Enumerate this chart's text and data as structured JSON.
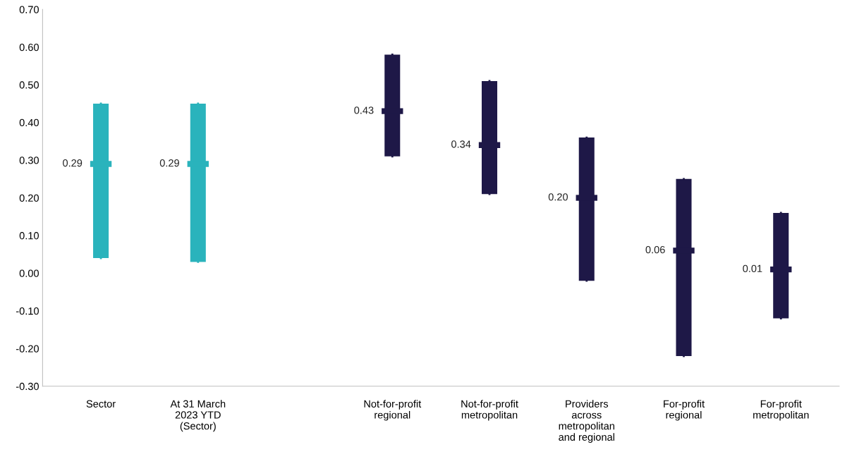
{
  "chart_data": {
    "type": "box",
    "categories": [
      "Sector",
      "At 31 March\n2023 YTD\n(Sector)",
      null,
      "Not-for-profit\nregional",
      "Not-for-profit\nmetropolitan",
      "Providers\nacross\nmetropolitan\nand regional",
      "For-profit\nregional",
      "For-profit\nmetropolitan"
    ],
    "boxes": [
      {
        "low": 0.04,
        "q1": 0.04,
        "median": 0.29,
        "q3": 0.45,
        "high": 0.45
      },
      {
        "low": 0.03,
        "q1": 0.03,
        "median": 0.29,
        "q3": 0.45,
        "high": 0.45
      },
      null,
      {
        "low": 0.31,
        "q1": 0.31,
        "median": 0.43,
        "q3": 0.58,
        "high": 0.58
      },
      {
        "low": 0.21,
        "q1": 0.21,
        "median": 0.34,
        "q3": 0.51,
        "high": 0.51
      },
      {
        "low": -0.02,
        "q1": -0.02,
        "median": 0.2,
        "q3": 0.36,
        "high": 0.36
      },
      {
        "low": -0.22,
        "q1": -0.22,
        "median": 0.06,
        "q3": 0.25,
        "high": 0.25
      },
      {
        "low": -0.12,
        "q1": -0.12,
        "median": 0.01,
        "q3": 0.16,
        "high": 0.16
      }
    ],
    "colors": [
      "#2ab3bc",
      "#2ab3bc",
      null,
      "#1e1847",
      "#1e1847",
      "#1e1847",
      "#1e1847",
      "#1e1847"
    ],
    "annotations": [
      {
        "text": "0.29",
        "x": "Sector",
        "y": 0.29
      },
      {
        "text": "0.29",
        "x": "At 31 March\n2023 YTD\n(Sector)",
        "y": 0.29
      },
      {
        "text": "0.43",
        "x": "Not-for-profit\nregional",
        "y": 0.43
      },
      {
        "text": "0.34",
        "x": "Not-for-profit\nmetropolitan",
        "y": 0.34
      },
      {
        "text": "0.20",
        "x": "Providers\nacross\nmetropolitan\nand regional",
        "y": 0.2
      },
      {
        "text": "0.06",
        "x": "For-profit\nregional",
        "y": 0.06
      },
      {
        "text": "0.01",
        "x": "For-profit\nmetropolitan",
        "y": 0.01
      }
    ],
    "ylim": [
      -0.3,
      0.7
    ],
    "yticks": [
      {
        "value": -0.3,
        "label": "-0.30"
      },
      {
        "value": -0.2,
        "label": "-0.20"
      },
      {
        "value": -0.1,
        "label": "-0.10"
      },
      {
        "value": 0,
        "label": "0.00"
      },
      {
        "value": 0.1,
        "label": "0.10"
      },
      {
        "value": 0.2,
        "label": "0.20"
      },
      {
        "value": 0.3,
        "label": "0.30"
      },
      {
        "value": 0.4,
        "label": "0.40"
      },
      {
        "value": 0.5,
        "label": "0.50"
      },
      {
        "value": 0.6,
        "label": "0.60"
      },
      {
        "value": 0.7,
        "label": "0.70"
      }
    ],
    "grid": false,
    "legend": false
  }
}
